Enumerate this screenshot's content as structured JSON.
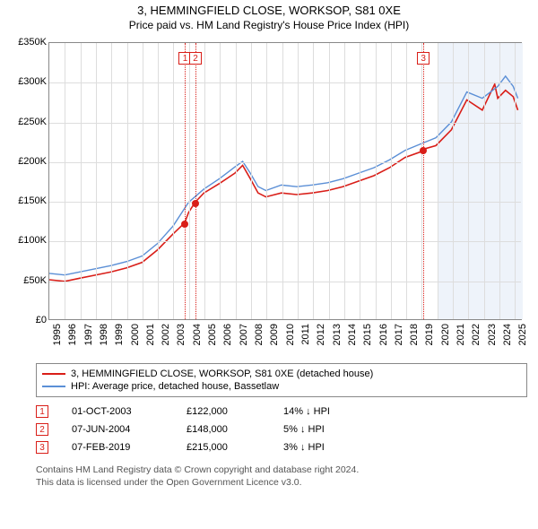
{
  "title": "3, HEMMINGFIELD CLOSE, WORKSOP, S81 0XE",
  "subtitle": "Price paid vs. HM Land Registry's House Price Index (HPI)",
  "chart": {
    "type": "line",
    "background_color": "#ffffff",
    "grid_color": "#dddddd",
    "axis_color": "#888888",
    "shading": {
      "from_year": 2020,
      "to_year": 2025.5,
      "fill": "#eef3fa",
      "opacity": 1
    },
    "xlim": [
      1995,
      2025.5
    ],
    "x_ticks": [
      1995,
      1996,
      1997,
      1998,
      1999,
      2000,
      2001,
      2002,
      2003,
      2004,
      2005,
      2006,
      2007,
      2008,
      2009,
      2010,
      2011,
      2012,
      2013,
      2014,
      2015,
      2016,
      2017,
      2018,
      2019,
      2020,
      2021,
      2022,
      2023,
      2024,
      2025
    ],
    "x_tick_labels": [
      "1995",
      "1996",
      "1997",
      "1998",
      "1999",
      "2000",
      "2001",
      "2002",
      "2003",
      "2004",
      "2005",
      "2006",
      "2007",
      "2008",
      "2009",
      "2010",
      "2011",
      "2012",
      "2013",
      "2014",
      "2015",
      "2016",
      "2017",
      "2018",
      "2019",
      "2020",
      "2021",
      "2022",
      "2023",
      "2024",
      "2025"
    ],
    "ylim": [
      0,
      350000
    ],
    "y_ticks": [
      0,
      50000,
      100000,
      150000,
      200000,
      250000,
      300000,
      350000
    ],
    "y_tick_labels": [
      "£0",
      "£50K",
      "£100K",
      "£150K",
      "£200K",
      "£250K",
      "£300K",
      "£350K"
    ],
    "label_fontsize": 11,
    "series": [
      {
        "name": "3, HEMMINGFIELD CLOSE, WORKSOP, S81 0XE (detached house)",
        "color": "#d91e18",
        "line_width": 1.6,
        "x": [
          1995,
          1996,
          1997,
          1998,
          1999,
          2000,
          2001,
          2002,
          2003,
          2003.75,
          2004,
          2004.42,
          2005,
          2006,
          2007,
          2007.5,
          2008,
          2008.5,
          2009,
          2010,
          2011,
          2012,
          2013,
          2014,
          2015,
          2016,
          2017,
          2018,
          2019,
          2019.1,
          2020,
          2021,
          2022,
          2023,
          2023.8,
          2024,
          2024.5,
          2025,
          2025.3
        ],
        "y": [
          50000,
          48000,
          52000,
          56000,
          60000,
          65000,
          72000,
          88000,
          108000,
          122000,
          135000,
          148000,
          160000,
          172000,
          185000,
          195000,
          178000,
          160000,
          155000,
          160000,
          158000,
          160000,
          163000,
          168000,
          175000,
          182000,
          192000,
          205000,
          212000,
          215000,
          220000,
          240000,
          278000,
          265000,
          298000,
          280000,
          290000,
          282000,
          265000
        ]
      },
      {
        "name": "HPI: Average price, detached house, Bassetlaw",
        "color": "#5b8fd6",
        "line_width": 1.4,
        "x": [
          1995,
          1996,
          1997,
          1998,
          1999,
          2000,
          2001,
          2002,
          2003,
          2004,
          2005,
          2006,
          2007,
          2007.5,
          2008,
          2008.5,
          2009,
          2010,
          2011,
          2012,
          2013,
          2014,
          2015,
          2016,
          2017,
          2018,
          2019,
          2020,
          2021,
          2022,
          2023,
          2024,
          2024.5,
          2025,
          2025.3
        ],
        "y": [
          58000,
          56000,
          60000,
          64000,
          68000,
          73000,
          80000,
          96000,
          118000,
          148000,
          165000,
          178000,
          193000,
          200000,
          185000,
          168000,
          163000,
          170000,
          168000,
          170000,
          173000,
          178000,
          185000,
          192000,
          202000,
          214000,
          222000,
          230000,
          250000,
          288000,
          280000,
          295000,
          308000,
          295000,
          280000
        ]
      }
    ],
    "markers": [
      {
        "id": "1",
        "year": 2003.75,
        "price": 122000,
        "color": "#d91e18"
      },
      {
        "id": "2",
        "year": 2004.42,
        "price": 148000,
        "color": "#d91e18"
      },
      {
        "id": "3",
        "year": 2019.1,
        "price": 215000,
        "color": "#d91e18"
      }
    ]
  },
  "legend": [
    {
      "color": "#d91e18",
      "label": "3, HEMMINGFIELD CLOSE, WORKSOP, S81 0XE (detached house)"
    },
    {
      "color": "#5b8fd6",
      "label": "HPI: Average price, detached house, Bassetlaw"
    }
  ],
  "transactions": [
    {
      "id": "1",
      "color": "#d91e18",
      "date": "01-OCT-2003",
      "price": "£122,000",
      "delta": "14% ↓ HPI"
    },
    {
      "id": "2",
      "color": "#d91e18",
      "date": "07-JUN-2004",
      "price": "£148,000",
      "delta": "5% ↓ HPI"
    },
    {
      "id": "3",
      "color": "#d91e18",
      "date": "07-FEB-2019",
      "price": "£215,000",
      "delta": "3% ↓ HPI"
    }
  ],
  "footer_line1": "Contains HM Land Registry data © Crown copyright and database right 2024.",
  "footer_line2": "This data is licensed under the Open Government Licence v3.0."
}
